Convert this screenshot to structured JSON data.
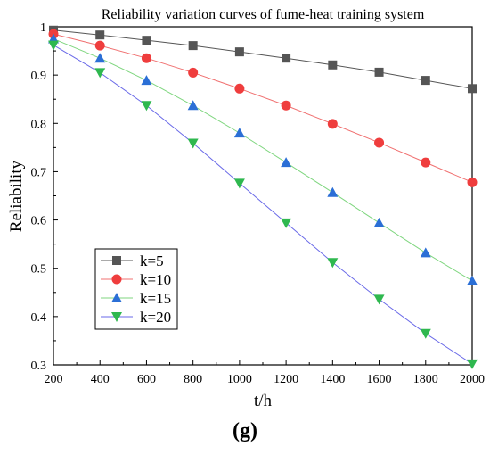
{
  "caption": "(g)",
  "chart_data": {
    "type": "line",
    "title": "Reliability variation curves of fume-heat training system",
    "xlabel": "t/h",
    "ylabel": "Reliability",
    "xlim": [
      200,
      2000
    ],
    "ylim": [
      0.3,
      1.0
    ],
    "x": [
      200,
      400,
      600,
      800,
      1000,
      1200,
      1400,
      1600,
      1800,
      2000
    ],
    "x_ticks": [
      "200",
      "400",
      "600",
      "800",
      "1000",
      "1200",
      "1400",
      "1600",
      "1800",
      "2000"
    ],
    "y_ticks": [
      "0.3",
      "0.4",
      "0.5",
      "0.6",
      "0.7",
      "0.8",
      "0.9",
      "1"
    ],
    "grid": false,
    "legend_position": "bottom-left",
    "series": [
      {
        "name": "k=5",
        "marker": "square",
        "color": "#555555",
        "line_color": "#555555",
        "values": [
          0.993,
          0.983,
          0.972,
          0.961,
          0.948,
          0.935,
          0.921,
          0.906,
          0.889,
          0.872
        ]
      },
      {
        "name": "k=10",
        "marker": "circle",
        "color": "#ef3d3d",
        "line_color": "#f07070",
        "values": [
          0.985,
          0.961,
          0.935,
          0.905,
          0.872,
          0.837,
          0.799,
          0.76,
          0.719,
          0.678
        ]
      },
      {
        "name": "k=15",
        "marker": "triangle-up",
        "color": "#2b6fd6",
        "line_color": "#7fd67f",
        "values": [
          0.975,
          0.935,
          0.889,
          0.837,
          0.78,
          0.719,
          0.657,
          0.594,
          0.532,
          0.474
        ]
      },
      {
        "name": "k=20",
        "marker": "triangle-down",
        "color": "#2fb84f",
        "line_color": "#6a6ae8",
        "values": [
          0.962,
          0.905,
          0.837,
          0.759,
          0.676,
          0.594,
          0.512,
          0.436,
          0.365,
          0.302
        ]
      }
    ]
  }
}
